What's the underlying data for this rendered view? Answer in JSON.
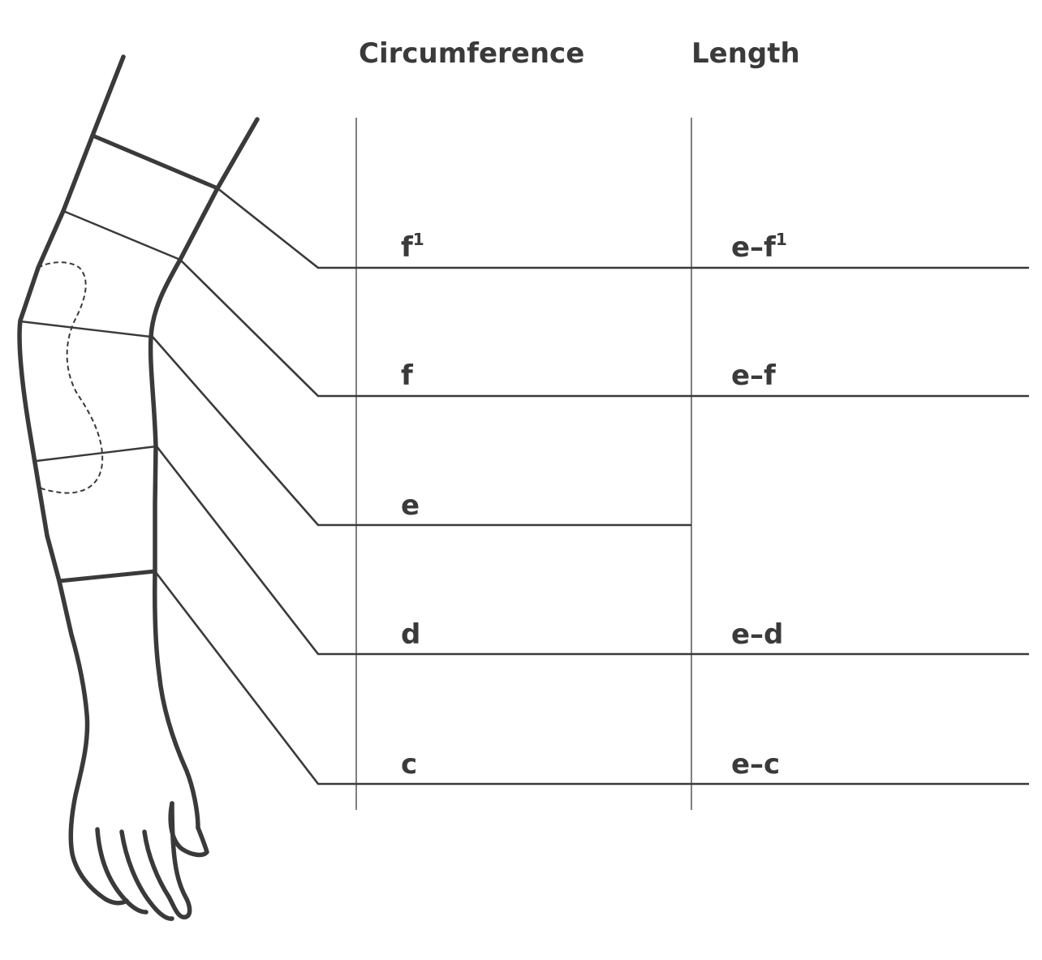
{
  "headers": {
    "circumference": "Circumference",
    "length": "Length"
  },
  "rows": [
    {
      "id": "f1",
      "circumference": "f",
      "circumference_sup": "1",
      "length": "e–f",
      "length_sup": "1"
    },
    {
      "id": "f",
      "circumference": "f",
      "circumference_sup": "",
      "length": "e–f",
      "length_sup": ""
    },
    {
      "id": "e",
      "circumference": "e",
      "circumference_sup": "",
      "length": "",
      "length_sup": ""
    },
    {
      "id": "d",
      "circumference": "d",
      "circumference_sup": "",
      "length": "e–d",
      "length_sup": ""
    },
    {
      "id": "c",
      "circumference": "c",
      "circumference_sup": "",
      "length": "e–c",
      "length_sup": ""
    }
  ]
}
